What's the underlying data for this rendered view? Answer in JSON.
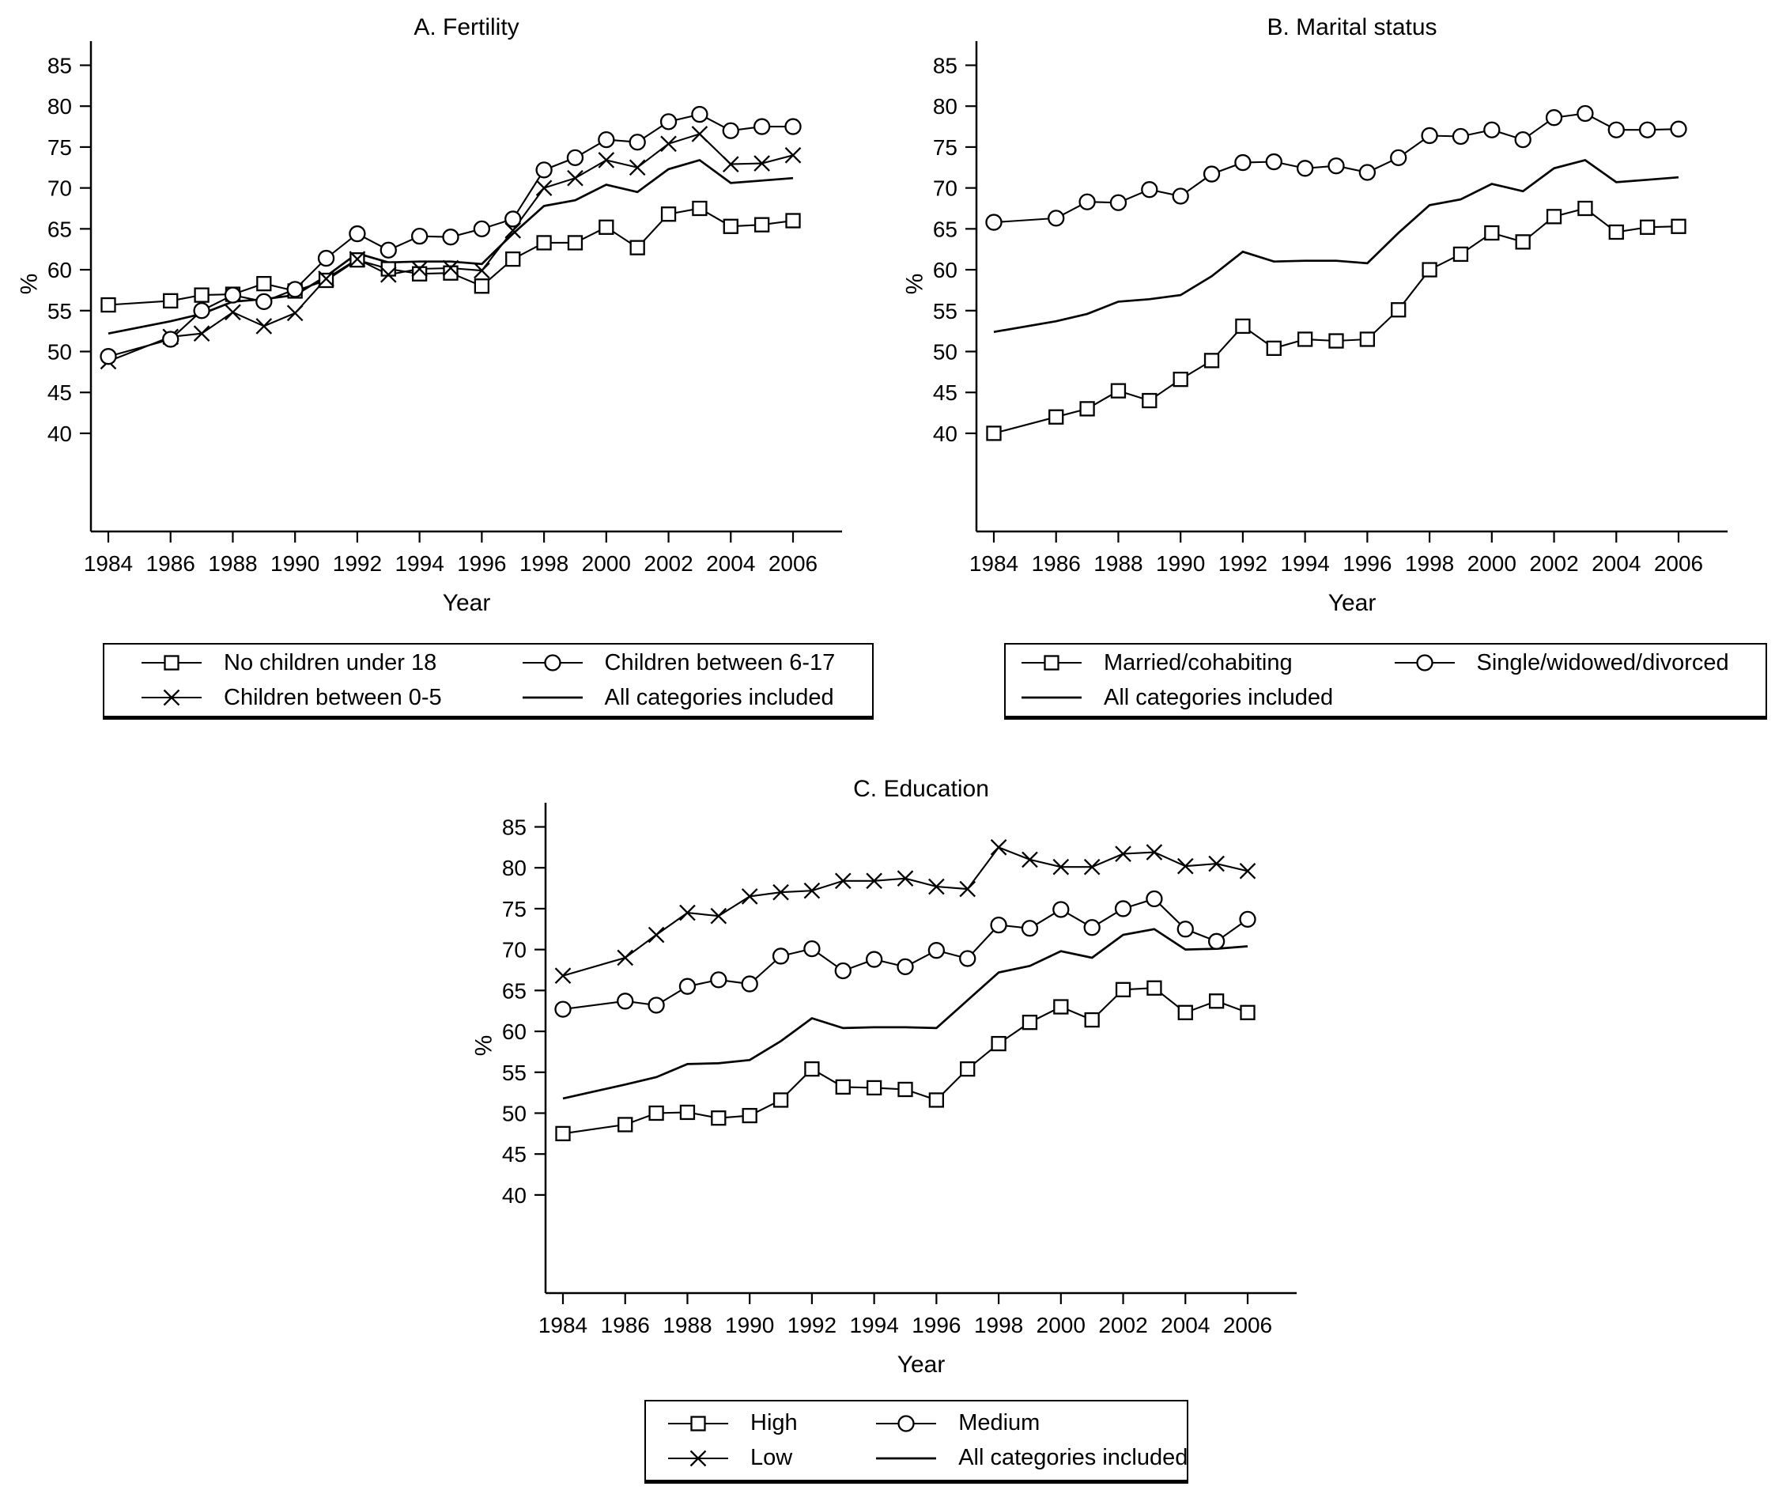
{
  "figure": {
    "background": "#ffffff",
    "ink": "#000000"
  },
  "chart_data": [
    {
      "type": "line",
      "title": "A. Fertility",
      "xlabel": "Year",
      "ylabel": "%",
      "ylim": [
        40,
        85
      ],
      "xlim": [
        1984,
        2006
      ],
      "grid": false,
      "legend_position": "below",
      "x": [
        1984,
        1986,
        1987,
        1988,
        1989,
        1990,
        1991,
        1992,
        1993,
        1994,
        1995,
        1996,
        1997,
        1998,
        1999,
        2000,
        2001,
        2002,
        2003,
        2004,
        2005,
        2006
      ],
      "series": [
        {
          "name": "No children under 18",
          "marker": "square",
          "values": [
            55.7,
            56.2,
            56.9,
            57.0,
            58.3,
            57.4,
            58.7,
            61.2,
            60.1,
            59.5,
            59.6,
            58.0,
            61.3,
            63.3,
            63.3,
            65.2,
            62.7,
            66.8,
            67.5,
            65.3,
            65.5,
            66.0
          ]
        },
        {
          "name": "Children between 0-5",
          "marker": "x",
          "values": [
            48.8,
            51.8,
            52.2,
            54.8,
            53.1,
            54.7,
            58.9,
            61.3,
            59.4,
            60.1,
            60.2,
            59.9,
            64.8,
            70.0,
            71.2,
            73.4,
            72.5,
            75.4,
            76.6,
            72.9,
            73.0,
            74.0
          ]
        },
        {
          "name": "Children between 6-17",
          "marker": "circle",
          "values": [
            49.4,
            51.5,
            55.0,
            56.9,
            56.1,
            57.6,
            61.4,
            64.4,
            62.4,
            64.1,
            64.0,
            65.0,
            66.2,
            72.2,
            73.7,
            75.9,
            75.6,
            78.1,
            79.0,
            77.0,
            77.5,
            77.5
          ]
        },
        {
          "name": "All categories included",
          "marker": "none",
          "values": [
            52.2,
            53.7,
            54.6,
            56.1,
            56.4,
            56.9,
            59.2,
            62.0,
            60.9,
            61.0,
            61.0,
            60.7,
            64.4,
            67.8,
            68.5,
            70.4,
            69.5,
            72.3,
            73.4,
            70.6,
            70.9,
            71.2
          ]
        }
      ]
    },
    {
      "type": "line",
      "title": "B. Marital status",
      "xlabel": "Year",
      "ylabel": "%",
      "ylim": [
        40,
        85
      ],
      "xlim": [
        1984,
        2006
      ],
      "grid": false,
      "legend_position": "below",
      "x": [
        1984,
        1986,
        1987,
        1988,
        1989,
        1990,
        1991,
        1992,
        1993,
        1994,
        1995,
        1996,
        1997,
        1998,
        1999,
        2000,
        2001,
        2002,
        2003,
        2004,
        2005,
        2006
      ],
      "series": [
        {
          "name": "Married/cohabiting",
          "marker": "square",
          "values": [
            40.0,
            42.0,
            43.0,
            45.2,
            44.0,
            46.6,
            48.9,
            53.1,
            50.4,
            51.5,
            51.3,
            51.5,
            55.1,
            60.0,
            61.9,
            64.5,
            63.4,
            66.5,
            67.5,
            64.6,
            65.2,
            65.3
          ]
        },
        {
          "name": "Single/widowed/divorced",
          "marker": "circle",
          "values": [
            65.8,
            66.3,
            68.3,
            68.2,
            69.8,
            69.0,
            71.7,
            73.1,
            73.2,
            72.4,
            72.7,
            71.9,
            73.7,
            76.4,
            76.3,
            77.1,
            75.9,
            78.6,
            79.1,
            77.1,
            77.1,
            77.2
          ]
        },
        {
          "name": "All categories included",
          "marker": "none",
          "values": [
            52.4,
            53.7,
            54.6,
            56.1,
            56.4,
            56.9,
            59.2,
            62.2,
            61.0,
            61.1,
            61.1,
            60.8,
            64.5,
            67.9,
            68.6,
            70.5,
            69.6,
            72.4,
            73.4,
            70.7,
            71.0,
            71.3
          ]
        }
      ]
    },
    {
      "type": "line",
      "title": "C. Education",
      "xlabel": "Year",
      "ylabel": "%",
      "ylim": [
        40,
        85
      ],
      "xlim": [
        1984,
        2006
      ],
      "grid": false,
      "legend_position": "below",
      "x": [
        1984,
        1986,
        1987,
        1988,
        1989,
        1990,
        1991,
        1992,
        1993,
        1994,
        1995,
        1996,
        1997,
        1998,
        1999,
        2000,
        2001,
        2002,
        2003,
        2004,
        2005,
        2006
      ],
      "series": [
        {
          "name": "High",
          "marker": "square",
          "values": [
            47.5,
            48.6,
            50.0,
            50.1,
            49.4,
            49.7,
            51.6,
            55.4,
            53.2,
            53.1,
            52.9,
            51.6,
            55.4,
            58.5,
            61.1,
            63.0,
            61.4,
            65.1,
            65.3,
            62.3,
            63.7,
            62.3
          ]
        },
        {
          "name": "Low",
          "marker": "x",
          "values": [
            66.8,
            69.0,
            71.8,
            74.5,
            74.1,
            76.5,
            77.0,
            77.2,
            78.4,
            78.4,
            78.7,
            77.7,
            77.4,
            82.5,
            81.0,
            80.1,
            80.1,
            81.7,
            81.9,
            80.2,
            80.5,
            79.6
          ]
        },
        {
          "name": "Medium",
          "marker": "circle",
          "values": [
            62.7,
            63.7,
            63.2,
            65.5,
            66.3,
            65.8,
            69.2,
            70.1,
            67.4,
            68.8,
            67.9,
            69.9,
            68.9,
            73.0,
            72.6,
            74.9,
            72.7,
            75.0,
            76.2,
            72.5,
            71.0,
            73.7
          ]
        },
        {
          "name": "All categories included",
          "marker": "none",
          "values": [
            51.8,
            53.5,
            54.4,
            56.0,
            56.1,
            56.5,
            58.8,
            61.6,
            60.4,
            60.5,
            60.5,
            60.4,
            63.8,
            67.2,
            68.0,
            69.8,
            69.0,
            71.8,
            72.5,
            70.0,
            70.1,
            70.4
          ]
        }
      ]
    }
  ],
  "panels": [
    {
      "id": "A",
      "y_ticks": [
        85,
        80,
        75,
        70,
        65,
        60,
        55,
        50,
        45,
        40
      ],
      "x_ticks": [
        1984,
        1986,
        1988,
        1990,
        1992,
        1994,
        1996,
        1998,
        2000,
        2002,
        2004,
        2006
      ],
      "legend": {
        "rows": [
          [
            {
              "marker": "square",
              "label": "No children under 18"
            },
            {
              "marker": "circle",
              "label": "Children between 6-17"
            }
          ],
          [
            {
              "marker": "x",
              "label": "Children between 0-5"
            },
            {
              "marker": "line",
              "label": "All categories included"
            }
          ]
        ]
      }
    },
    {
      "id": "B",
      "y_ticks": [
        85,
        80,
        75,
        70,
        65,
        60,
        55,
        50,
        45,
        40
      ],
      "x_ticks": [
        1984,
        1986,
        1988,
        1990,
        1992,
        1994,
        1996,
        1998,
        2000,
        2002,
        2004,
        2006
      ],
      "legend": {
        "rows": [
          [
            {
              "marker": "square",
              "label": "Married/cohabiting"
            },
            {
              "marker": "circle",
              "label": "Single/widowed/divorced"
            }
          ],
          [
            {
              "marker": "line",
              "label": "All categories included"
            }
          ]
        ]
      }
    },
    {
      "id": "C",
      "y_ticks": [
        85,
        80,
        75,
        70,
        65,
        60,
        55,
        50,
        45,
        40
      ],
      "x_ticks": [
        1984,
        1986,
        1988,
        1990,
        1992,
        1994,
        1996,
        1998,
        2000,
        2002,
        2004,
        2006
      ],
      "legend": {
        "rows": [
          [
            {
              "marker": "square",
              "label": "High"
            },
            {
              "marker": "circle",
              "label": "Medium"
            }
          ],
          [
            {
              "marker": "x",
              "label": "Low"
            },
            {
              "marker": "line",
              "label": "All categories included"
            }
          ]
        ]
      }
    }
  ]
}
